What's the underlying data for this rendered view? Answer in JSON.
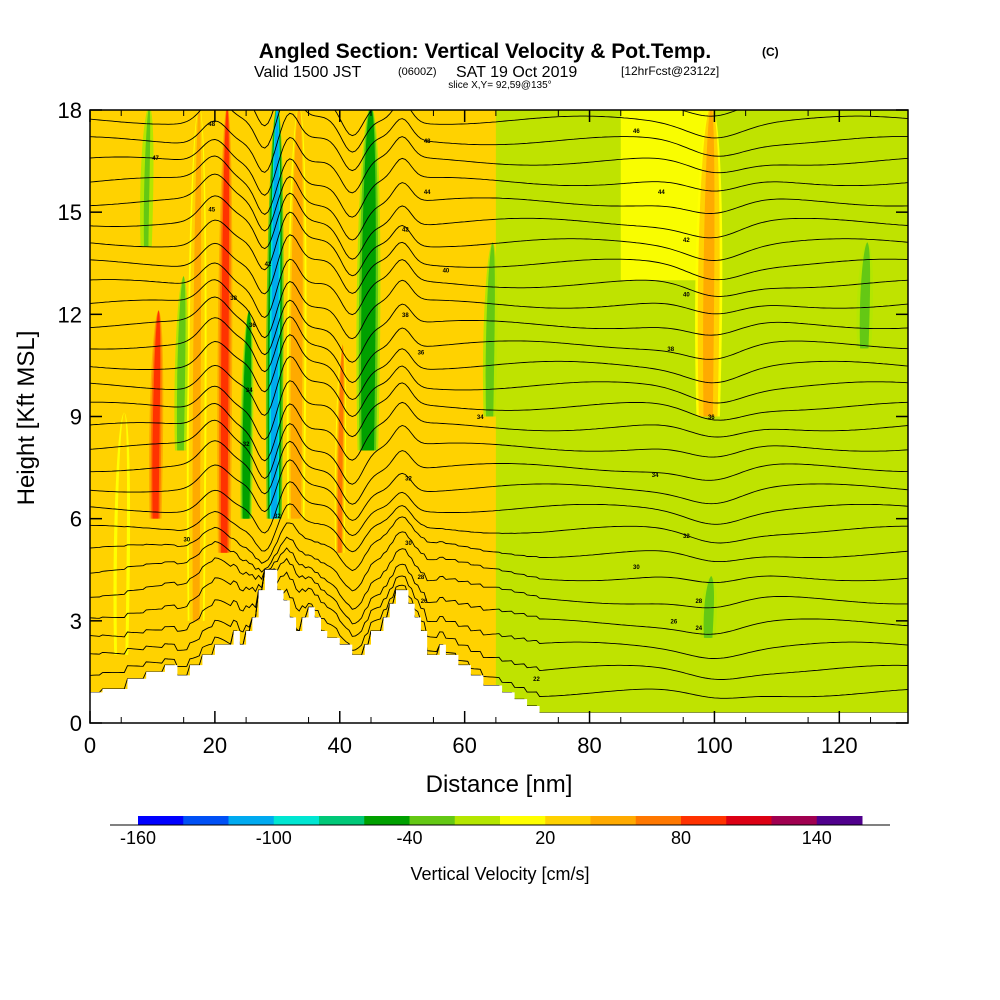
{
  "header": {
    "title": "Angled Section: Vertical Velocity & Pot.Temp.",
    "copyright": "(C)",
    "valid_prefix": "Valid 1500 JST",
    "valid_z": "(0600Z)",
    "valid_date": "SAT 19 Oct 2019",
    "fcst": "[12hrFcst@2312z]",
    "slice": "slice X,Y= 92,59@135°"
  },
  "chart_data": {
    "type": "heatmap",
    "title": "Angled Section: Vertical Velocity & Pot.Temp.",
    "xlabel": "Distance [nm]",
    "ylabel": "Height [Kft MSL]",
    "xlim": [
      0,
      131
    ],
    "ylim": [
      0,
      18
    ],
    "xticks": [
      "0",
      "20",
      "40",
      "60",
      "80",
      "100",
      "120"
    ],
    "yticks": [
      "0",
      "3",
      "6",
      "9",
      "12",
      "15",
      "18"
    ],
    "colorbar": {
      "label": "Vertical Velocity [cm/s]",
      "ticks": [
        "-160",
        "-100",
        "-40",
        "20",
        "80",
        "140"
      ],
      "range": [
        -160,
        160
      ],
      "colors": [
        "#0000ff",
        "#0050f5",
        "#00aaf0",
        "#00e6d2",
        "#00c878",
        "#00a000",
        "#64c814",
        "#b4e600",
        "#ffff00",
        "#ffd200",
        "#ffaa00",
        "#ff7800",
        "#ff3200",
        "#dc0014",
        "#a00050",
        "#50008c"
      ]
    },
    "updraft_bands": [
      {
        "x": 10.5,
        "ybot": 6,
        "ytop": 12,
        "w": 80,
        "width_nm": 1.6
      },
      {
        "x": 17,
        "ybot": 3,
        "ytop": 18,
        "w": 45,
        "width_nm": 1.8
      },
      {
        "x": 21.5,
        "ybot": 5,
        "ytop": 18,
        "w": 95,
        "width_nm": 1.7
      },
      {
        "x": 33,
        "ybot": 6,
        "ytop": 18,
        "w": 55,
        "width_nm": 1.8
      },
      {
        "x": 40,
        "ybot": 5,
        "ytop": 11,
        "w": 60,
        "width_nm": 1.0
      },
      {
        "x": 99,
        "ybot": 9,
        "ytop": 18,
        "w": 50,
        "width_nm": 2.5
      },
      {
        "x": 5,
        "ybot": 2,
        "ytop": 9,
        "w": 30,
        "width_nm": 1.5
      }
    ],
    "downdraft_bands": [
      {
        "x": 29.5,
        "ybot": 6,
        "ytop": 18,
        "w": -120,
        "width_nm": 1.6
      },
      {
        "x": 25,
        "ybot": 6,
        "ytop": 12,
        "w": -60,
        "width_nm": 1.2
      },
      {
        "x": 44.5,
        "ybot": 8,
        "ytop": 18,
        "w": -55,
        "width_nm": 2.2
      },
      {
        "x": 14.5,
        "ybot": 8,
        "ytop": 13,
        "w": -30,
        "width_nm": 1.2
      },
      {
        "x": 64,
        "ybot": 9,
        "ytop": 14,
        "w": -30,
        "width_nm": 1.3
      },
      {
        "x": 124,
        "ybot": 11,
        "ytop": 14,
        "w": -30,
        "width_nm": 1.5
      },
      {
        "x": 99,
        "ybot": 2.5,
        "ytop": 4.2,
        "w": -30,
        "width_nm": 1.5
      },
      {
        "x": 9,
        "ybot": 14,
        "ytop": 18,
        "w": -25,
        "width_nm": 1.2
      }
    ],
    "terrain": [
      [
        0,
        0.9
      ],
      [
        2,
        0.9
      ],
      [
        2,
        1.0
      ],
      [
        6,
        1.0
      ],
      [
        6,
        1.3
      ],
      [
        9,
        1.3
      ],
      [
        9,
        1.5
      ],
      [
        12,
        1.5
      ],
      [
        12,
        1.7
      ],
      [
        14,
        1.7
      ],
      [
        14,
        1.4
      ],
      [
        16,
        1.4
      ],
      [
        16,
        1.7
      ],
      [
        18,
        1.7
      ],
      [
        18,
        2.0
      ],
      [
        20,
        2.0
      ],
      [
        20,
        2.3
      ],
      [
        23,
        2.3
      ],
      [
        23,
        2.7
      ],
      [
        24,
        2.7
      ],
      [
        24,
        2.3
      ],
      [
        25,
        2.3
      ],
      [
        25,
        2.7
      ],
      [
        26,
        2.7
      ],
      [
        26,
        3.1
      ],
      [
        27,
        3.1
      ],
      [
        27,
        3.9
      ],
      [
        28,
        3.9
      ],
      [
        28,
        4.5
      ],
      [
        30,
        4.5
      ],
      [
        30,
        3.9
      ],
      [
        31,
        3.9
      ],
      [
        31,
        3.6
      ],
      [
        32,
        3.6
      ],
      [
        32,
        3.1
      ],
      [
        33,
        3.1
      ],
      [
        33,
        2.7
      ],
      [
        34,
        2.7
      ],
      [
        34,
        3.1
      ],
      [
        35,
        3.1
      ],
      [
        35,
        3.4
      ],
      [
        36,
        3.4
      ],
      [
        36,
        3.1
      ],
      [
        37,
        3.1
      ],
      [
        37,
        2.7
      ],
      [
        38,
        2.7
      ],
      [
        38,
        2.5
      ],
      [
        40,
        2.5
      ],
      [
        40,
        2.3
      ],
      [
        42,
        2.3
      ],
      [
        42,
        2.0
      ],
      [
        44,
        2.0
      ],
      [
        44,
        2.3
      ],
      [
        45,
        2.3
      ],
      [
        45,
        2.7
      ],
      [
        47,
        2.7
      ],
      [
        47,
        3.1
      ],
      [
        48,
        3.1
      ],
      [
        48,
        3.5
      ],
      [
        49,
        3.5
      ],
      [
        49,
        3.9
      ],
      [
        51,
        3.9
      ],
      [
        51,
        3.5
      ],
      [
        52,
        3.5
      ],
      [
        52,
        3.1
      ],
      [
        53,
        3.1
      ],
      [
        53,
        2.7
      ],
      [
        54,
        2.7
      ],
      [
        54,
        2.0
      ],
      [
        56,
        2.0
      ],
      [
        56,
        2.3
      ],
      [
        57,
        2.3
      ],
      [
        57,
        2.0
      ],
      [
        59,
        2.0
      ],
      [
        59,
        1.7
      ],
      [
        61,
        1.7
      ],
      [
        61,
        1.4
      ],
      [
        63,
        1.4
      ],
      [
        63,
        1.1
      ],
      [
        66,
        1.1
      ],
      [
        66,
        0.9
      ],
      [
        68,
        0.9
      ],
      [
        68,
        0.7
      ],
      [
        70,
        0.7
      ],
      [
        70,
        0.5
      ],
      [
        72,
        0.5
      ],
      [
        72,
        0.3
      ],
      [
        131,
        0.3
      ]
    ],
    "theta_contours": {
      "count": 30,
      "labels": [
        {
          "x": 19.5,
          "y": 17.6,
          "t": "48"
        },
        {
          "x": 10.5,
          "y": 16.6,
          "t": "47"
        },
        {
          "x": 19.5,
          "y": 15.1,
          "t": "45"
        },
        {
          "x": 28.5,
          "y": 13.5,
          "t": "42"
        },
        {
          "x": 23.0,
          "y": 12.5,
          "t": "38"
        },
        {
          "x": 26.0,
          "y": 11.7,
          "t": "36"
        },
        {
          "x": 25.5,
          "y": 9.8,
          "t": "34"
        },
        {
          "x": 25.0,
          "y": 8.2,
          "t": "32"
        },
        {
          "x": 15.5,
          "y": 5.4,
          "t": "30"
        },
        {
          "x": 30.0,
          "y": 6.1,
          "t": "32"
        },
        {
          "x": 54.0,
          "y": 17.1,
          "t": "48"
        },
        {
          "x": 54.0,
          "y": 15.6,
          "t": "44"
        },
        {
          "x": 50.5,
          "y": 14.5,
          "t": "42"
        },
        {
          "x": 57.0,
          "y": 13.3,
          "t": "40"
        },
        {
          "x": 50.5,
          "y": 12.0,
          "t": "38"
        },
        {
          "x": 53.0,
          "y": 10.9,
          "t": "36"
        },
        {
          "x": 62.5,
          "y": 9.0,
          "t": "34"
        },
        {
          "x": 51.0,
          "y": 7.2,
          "t": "32"
        },
        {
          "x": 51.0,
          "y": 5.3,
          "t": "30"
        },
        {
          "x": 53.0,
          "y": 4.3,
          "t": "28"
        },
        {
          "x": 53.5,
          "y": 3.6,
          "t": "26"
        },
        {
          "x": 87.5,
          "y": 17.4,
          "t": "46"
        },
        {
          "x": 91.5,
          "y": 15.6,
          "t": "44"
        },
        {
          "x": 95.5,
          "y": 14.2,
          "t": "42"
        },
        {
          "x": 95.5,
          "y": 12.6,
          "t": "40"
        },
        {
          "x": 93.0,
          "y": 11.0,
          "t": "38"
        },
        {
          "x": 99.5,
          "y": 9.0,
          "t": "36"
        },
        {
          "x": 90.5,
          "y": 7.3,
          "t": "34"
        },
        {
          "x": 95.5,
          "y": 5.5,
          "t": "32"
        },
        {
          "x": 87.5,
          "y": 4.6,
          "t": "30"
        },
        {
          "x": 97.5,
          "y": 3.6,
          "t": "28"
        },
        {
          "x": 93.5,
          "y": 3.0,
          "t": "26"
        },
        {
          "x": 97.5,
          "y": 2.8,
          "t": "24"
        },
        {
          "x": 71.5,
          "y": 1.3,
          "t": "22"
        }
      ]
    }
  }
}
